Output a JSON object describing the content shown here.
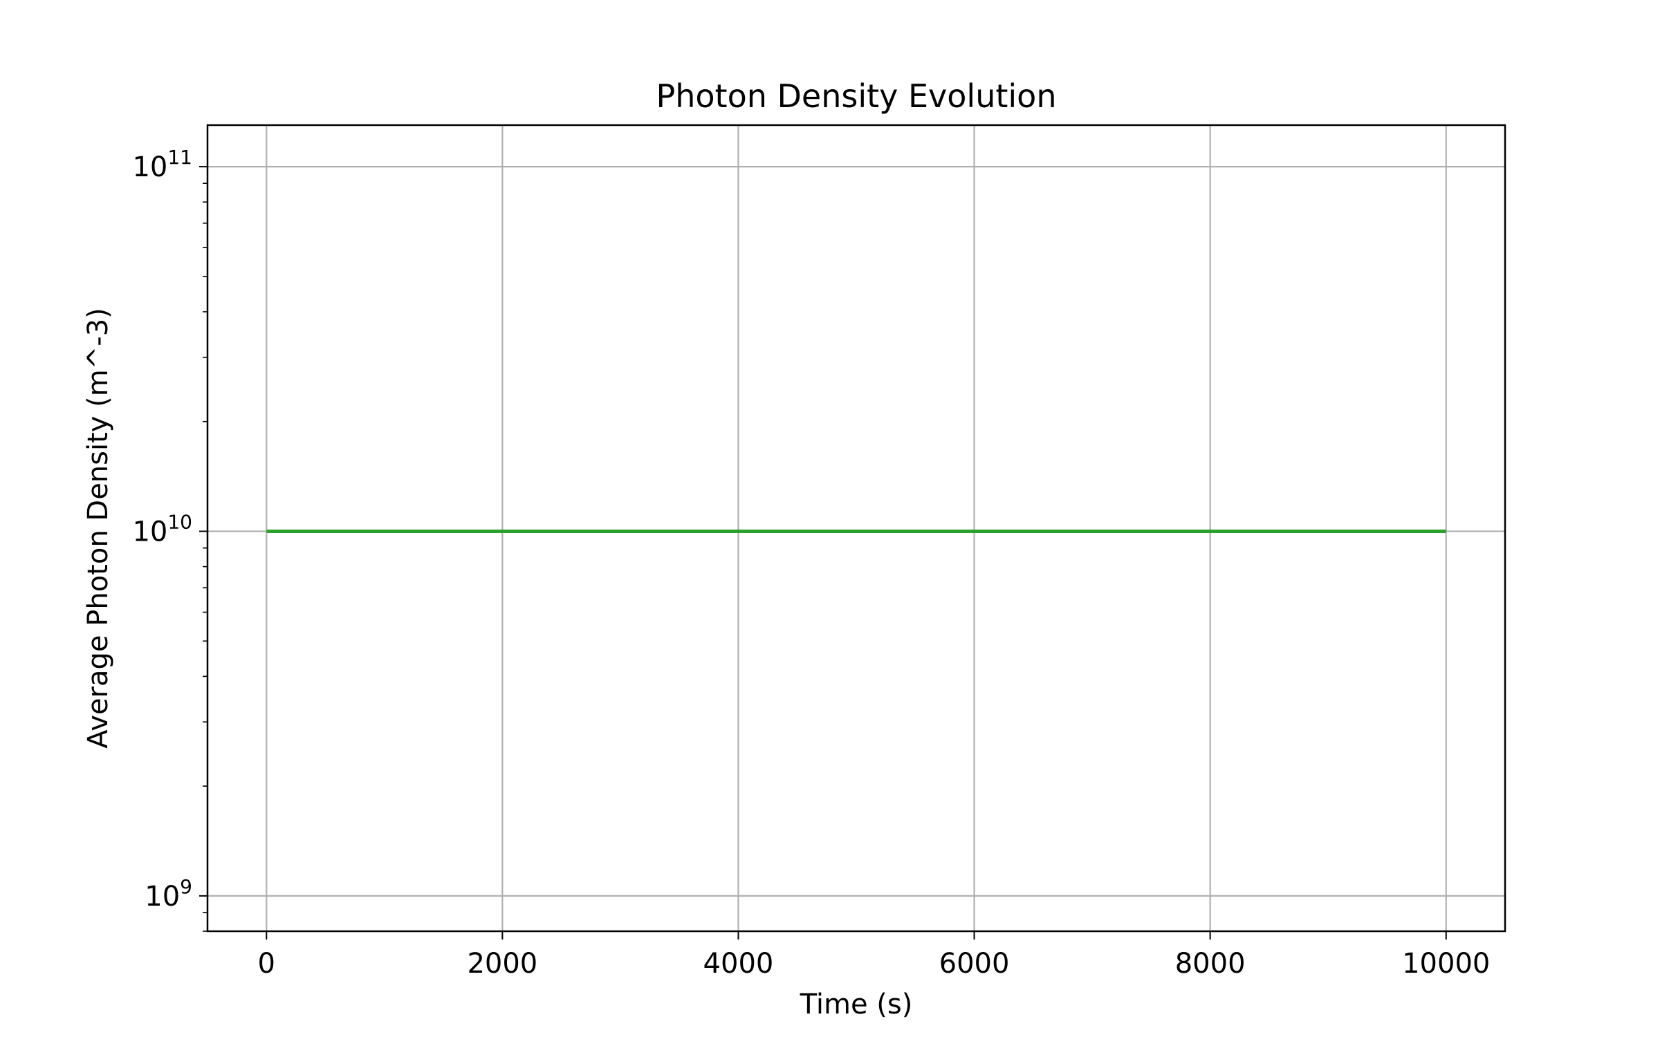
{
  "chart_data": {
    "type": "line",
    "title": "Photon Density Evolution",
    "xlabel": "Time (s)",
    "ylabel": "Average Photon Density (m^-3)",
    "xlim": [
      -500,
      10500
    ],
    "ylim": [
      800000000,
      130000000000
    ],
    "yscale": "log",
    "grid": true,
    "x_ticks": [
      {
        "value": 0,
        "label": "0"
      },
      {
        "value": 2000,
        "label": "2000"
      },
      {
        "value": 4000,
        "label": "4000"
      },
      {
        "value": 6000,
        "label": "6000"
      },
      {
        "value": 8000,
        "label": "8000"
      },
      {
        "value": 10000,
        "label": "10000"
      }
    ],
    "y_ticks": [
      {
        "value": 1000000000,
        "base": "10",
        "exp": "9"
      },
      {
        "value": 10000000000,
        "base": "10",
        "exp": "10"
      },
      {
        "value": 100000000000,
        "base": "10",
        "exp": "11"
      }
    ],
    "series": [
      {
        "color": "#2ca02c",
        "x": [
          0,
          10000
        ],
        "y": [
          10000000000,
          10000000000
        ]
      }
    ]
  }
}
